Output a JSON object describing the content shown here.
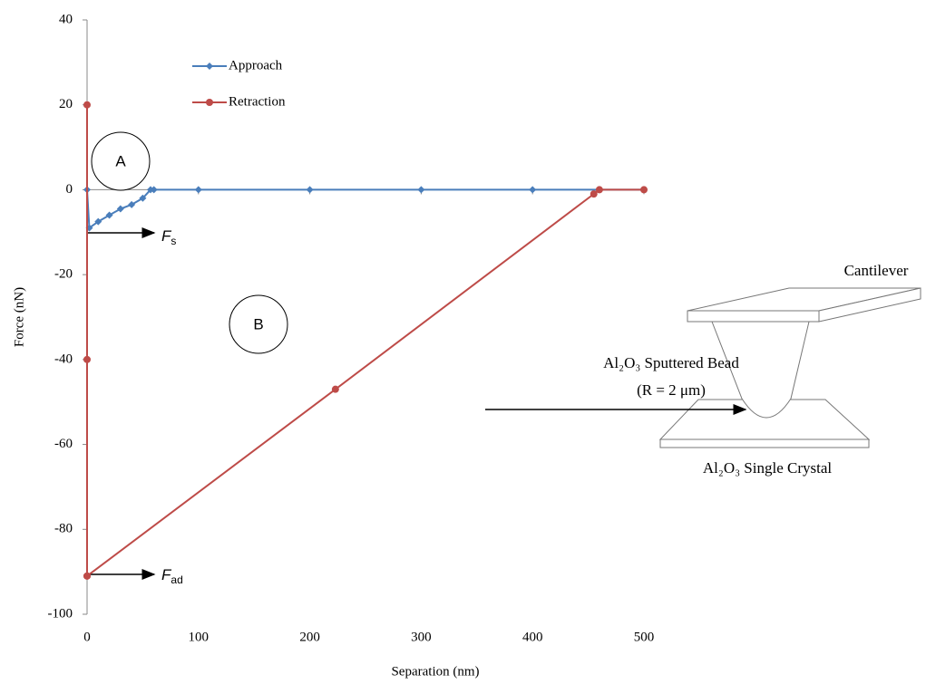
{
  "chart_data": {
    "type": "scatter",
    "x_label": "Separation (nm)",
    "y_label": "Force (nN)",
    "xlim": [
      0,
      500
    ],
    "xticks": [
      0,
      100,
      200,
      300,
      400,
      500
    ],
    "ylim": [
      -100,
      40
    ],
    "yticks": [
      -100,
      -80,
      -60,
      -40,
      -20,
      0,
      20,
      40
    ],
    "legend": "upper left",
    "series": [
      {
        "name": "Approach",
        "color": "#4a7ebb",
        "x": [
          0,
          0,
          2,
          10,
          20,
          30,
          40,
          50,
          57,
          60,
          100,
          200,
          300,
          400,
          460,
          500
        ],
        "y": [
          20,
          0,
          -9,
          -7.5,
          -6,
          -4.5,
          -3.5,
          -2,
          0,
          0,
          0,
          0,
          0,
          0,
          0,
          0
        ]
      },
      {
        "name": "Retraction",
        "color": "#be4b48",
        "x": [
          0,
          0,
          0,
          0,
          223,
          455,
          460,
          500
        ],
        "y": [
          20,
          -40,
          -91,
          -91,
          -47,
          -1,
          0,
          0
        ]
      }
    ],
    "annotations": [
      {
        "text": "A"
      },
      {
        "text": "B"
      },
      {
        "text": "F",
        "sub": "s"
      },
      {
        "text": "F",
        "sub": "ad"
      },
      {
        "text": "Cantilever"
      },
      {
        "text": "Al₂O₃ Sputtered Bead"
      },
      {
        "text": "(R = 2 μm)"
      },
      {
        "text": "Al₂O₃ Single Crystal"
      }
    ]
  }
}
